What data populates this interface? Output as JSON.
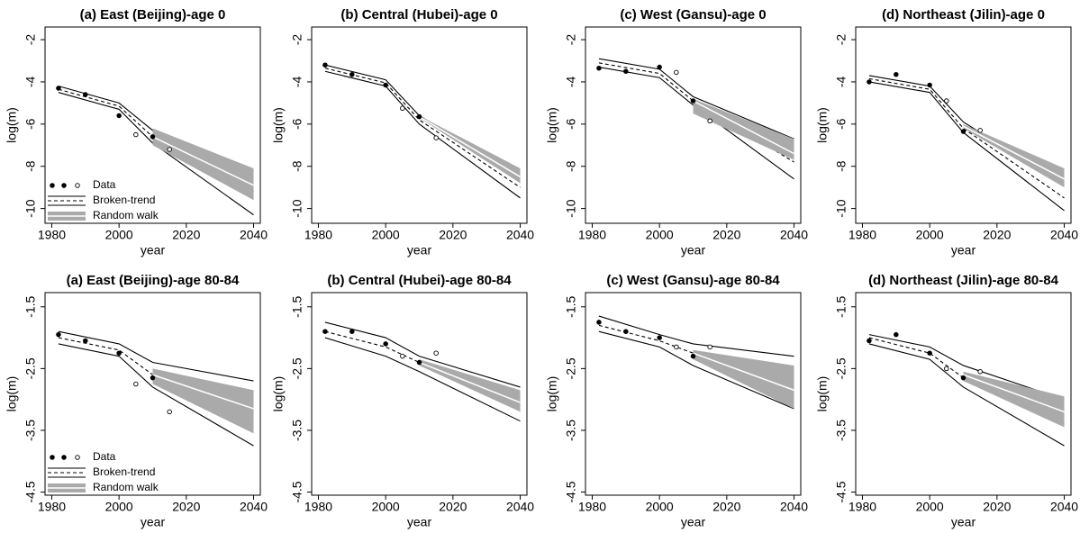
{
  "chart_data": [
    {
      "type": "line",
      "title": "(a) East (Beijing)-age 0",
      "x_label": "year",
      "y_label": "log(m)",
      "xlim": [
        1978,
        2042
      ],
      "xticks": [
        1980,
        2000,
        2020,
        2040
      ],
      "ylim": [
        -10.7,
        -1.4
      ],
      "yticks": [
        -2,
        -4,
        -6,
        -8,
        -10
      ],
      "legend": "bottom-left",
      "series": [
        {
          "name": "Data",
          "color": "#000000",
          "x": [
            1982,
            1990,
            2000,
            2005,
            2010,
            2015
          ],
          "values": [
            -4.3,
            -4.6,
            -5.6,
            -6.5,
            -6.6,
            -7.2
          ],
          "filled": [
            true,
            true,
            true,
            false,
            true,
            false
          ]
        },
        {
          "name": "Broken-trend",
          "color": "#000000",
          "x": [
            1982,
            2000,
            2010,
            2040
          ],
          "values": [
            -4.35,
            -5.15,
            -6.6,
            -9.2
          ],
          "upper": [
            -4.2,
            -5.0,
            -6.3,
            -8.2
          ],
          "lower": [
            -4.5,
            -5.3,
            -6.9,
            -10.3
          ]
        },
        {
          "name": "Random walk",
          "color": "#aaaaaa",
          "x": [
            2010,
            2040
          ],
          "values": [
            -6.6,
            -8.9
          ],
          "upper": [
            -6.2,
            -8.1
          ],
          "lower": [
            -7.0,
            -9.6
          ]
        }
      ]
    },
    {
      "type": "line",
      "title": "(b) Central (Hubei)-age 0",
      "x_label": "year",
      "y_label": "log(m)",
      "xlim": [
        1978,
        2042
      ],
      "xticks": [
        1980,
        2000,
        2020,
        2040
      ],
      "ylim": [
        -10.7,
        -1.4
      ],
      "yticks": [
        -2,
        -4,
        -6,
        -8,
        -10
      ],
      "series": [
        {
          "name": "Data",
          "color": "#000000",
          "x": [
            1982,
            1990,
            2000,
            2005,
            2010,
            2015
          ],
          "values": [
            -3.2,
            -3.65,
            -4.15,
            -5.25,
            -5.65,
            -6.65
          ],
          "filled": [
            true,
            true,
            true,
            false,
            true,
            false
          ]
        },
        {
          "name": "Broken-trend",
          "color": "#000000",
          "x": [
            1982,
            2000,
            2010,
            2040
          ],
          "values": [
            -3.35,
            -4.05,
            -5.8,
            -9.0
          ],
          "upper": [
            -3.2,
            -3.9,
            -5.6,
            -8.5
          ],
          "lower": [
            -3.5,
            -4.2,
            -6.0,
            -9.5
          ]
        },
        {
          "name": "Random walk",
          "color": "#aaaaaa",
          "x": [
            2010,
            2040
          ],
          "values": [
            -5.65,
            -8.5
          ],
          "upper": [
            -5.6,
            -8.1
          ],
          "lower": [
            -5.7,
            -8.8
          ]
        }
      ]
    },
    {
      "type": "line",
      "title": "(c) West (Gansu)-age 0",
      "x_label": "year",
      "y_label": "log(m)",
      "xlim": [
        1978,
        2042
      ],
      "xticks": [
        1980,
        2000,
        2020,
        2040
      ],
      "ylim": [
        -10.7,
        -1.4
      ],
      "yticks": [
        -2,
        -4,
        -6,
        -8,
        -10
      ],
      "series": [
        {
          "name": "Data",
          "color": "#000000",
          "x": [
            1982,
            1990,
            2000,
            2005,
            2010,
            2015
          ],
          "values": [
            -3.35,
            -3.5,
            -3.3,
            -3.55,
            -4.9,
            -5.85
          ],
          "filled": [
            true,
            true,
            true,
            false,
            true,
            false
          ]
        },
        {
          "name": "Broken-trend",
          "color": "#000000",
          "x": [
            1982,
            2000,
            2010,
            2040
          ],
          "values": [
            -3.1,
            -3.6,
            -4.9,
            -7.8
          ],
          "upper": [
            -2.9,
            -3.4,
            -4.7,
            -6.7
          ],
          "lower": [
            -3.3,
            -3.8,
            -5.1,
            -8.6
          ]
        },
        {
          "name": "Random walk",
          "color": "#aaaaaa",
          "x": [
            2010,
            2040
          ],
          "values": [
            -4.9,
            -7.4
          ],
          "upper": [
            -4.8,
            -6.7
          ],
          "lower": [
            -5.5,
            -7.7
          ]
        }
      ]
    },
    {
      "type": "line",
      "title": "(d) Northeast (Jilin)-age 0",
      "x_label": "year",
      "y_label": "log(m)",
      "xlim": [
        1978,
        2042
      ],
      "xticks": [
        1980,
        2000,
        2020,
        2040
      ],
      "ylim": [
        -10.7,
        -1.4
      ],
      "yticks": [
        -2,
        -4,
        -6,
        -8,
        -10
      ],
      "series": [
        {
          "name": "Data",
          "color": "#000000",
          "x": [
            1982,
            1990,
            2000,
            2005,
            2010,
            2015
          ],
          "values": [
            -4.0,
            -3.65,
            -4.15,
            -4.9,
            -6.35,
            -6.3
          ],
          "filled": [
            true,
            true,
            true,
            false,
            true,
            false
          ]
        },
        {
          "name": "Broken-trend",
          "color": "#000000",
          "x": [
            1982,
            2000,
            2010,
            2040
          ],
          "values": [
            -3.85,
            -4.35,
            -6.2,
            -9.5
          ],
          "upper": [
            -3.7,
            -4.2,
            -5.9,
            -8.9
          ],
          "lower": [
            -4.0,
            -4.5,
            -6.4,
            -10.1
          ]
        },
        {
          "name": "Random walk",
          "color": "#aaaaaa",
          "x": [
            2010,
            2040
          ],
          "values": [
            -6.1,
            -8.6
          ],
          "upper": [
            -6.0,
            -8.1
          ],
          "lower": [
            -6.2,
            -9.0
          ]
        }
      ]
    },
    {
      "type": "line",
      "title": "(a) East (Beijing)-age 80-84",
      "x_label": "year",
      "y_label": "log(m)",
      "xlim": [
        1978,
        2042
      ],
      "xticks": [
        1980,
        2000,
        2020,
        2040
      ],
      "ylim": [
        -4.55,
        -1.27
      ],
      "yticks": [
        -1.5,
        -2.5,
        -3.5,
        -4.5
      ],
      "legend": "bottom-left",
      "series": [
        {
          "name": "Data",
          "color": "#000000",
          "x": [
            1982,
            1990,
            2000,
            2005,
            2010,
            2015
          ],
          "values": [
            -1.95,
            -2.05,
            -2.25,
            -2.75,
            -2.65,
            -3.2
          ],
          "filled": [
            true,
            true,
            true,
            false,
            true,
            false
          ]
        },
        {
          "name": "Broken-trend",
          "color": "#000000",
          "x": [
            1982,
            2000,
            2010,
            2040
          ],
          "values": [
            -2.0,
            -2.2,
            -2.6,
            -3.2
          ],
          "upper": [
            -1.9,
            -2.1,
            -2.4,
            -2.7
          ],
          "lower": [
            -2.1,
            -2.3,
            -2.8,
            -3.75
          ]
        },
        {
          "name": "Random walk",
          "color": "#aaaaaa",
          "x": [
            2010,
            2040
          ],
          "values": [
            -2.6,
            -3.15
          ],
          "upper": [
            -2.5,
            -2.85
          ],
          "lower": [
            -2.75,
            -3.55
          ]
        }
      ]
    },
    {
      "type": "line",
      "title": "(b) Central (Hubei)-age 80-84",
      "x_label": "year",
      "y_label": "log(m)",
      "xlim": [
        1978,
        2042
      ],
      "xticks": [
        1980,
        2000,
        2020,
        2040
      ],
      "ylim": [
        -4.55,
        -1.27
      ],
      "yticks": [
        -1.5,
        -2.5,
        -3.5,
        -4.5
      ],
      "series": [
        {
          "name": "Data",
          "color": "#000000",
          "x": [
            1982,
            1990,
            2000,
            2005,
            2010,
            2015
          ],
          "values": [
            -1.9,
            -1.9,
            -2.1,
            -2.3,
            -2.4,
            -2.25
          ],
          "filled": [
            true,
            true,
            true,
            false,
            true,
            false
          ]
        },
        {
          "name": "Broken-trend",
          "color": "#000000",
          "x": [
            1982,
            2000,
            2010,
            2040
          ],
          "values": [
            -1.9,
            -2.15,
            -2.4,
            -3.05
          ],
          "upper": [
            -1.75,
            -2.0,
            -2.3,
            -2.8
          ],
          "lower": [
            -2.0,
            -2.3,
            -2.55,
            -3.35
          ]
        },
        {
          "name": "Random walk",
          "color": "#aaaaaa",
          "x": [
            2010,
            2040
          ],
          "values": [
            -2.4,
            -3.05
          ],
          "upper": [
            -2.35,
            -2.85
          ],
          "lower": [
            -2.45,
            -3.2
          ]
        }
      ]
    },
    {
      "type": "line",
      "title": "(c) West (Gansu)-age 80-84",
      "x_label": "year",
      "y_label": "log(m)",
      "xlim": [
        1978,
        2042
      ],
      "xticks": [
        1980,
        2000,
        2020,
        2040
      ],
      "ylim": [
        -4.55,
        -1.27
      ],
      "yticks": [
        -1.5,
        -2.5,
        -3.5,
        -4.5
      ],
      "series": [
        {
          "name": "Data",
          "color": "#000000",
          "x": [
            1982,
            1990,
            2000,
            2005,
            2010,
            2015
          ],
          "values": [
            -1.75,
            -1.9,
            -2.0,
            -2.15,
            -2.3,
            -2.15
          ],
          "filled": [
            true,
            true,
            true,
            false,
            true,
            false
          ]
        },
        {
          "name": "Broken-trend",
          "color": "#000000",
          "x": [
            1982,
            2000,
            2010,
            2040
          ],
          "values": [
            -1.8,
            -2.05,
            -2.25,
            -2.85
          ],
          "upper": [
            -1.65,
            -1.95,
            -2.1,
            -2.3
          ],
          "lower": [
            -1.9,
            -2.15,
            -2.45,
            -3.15
          ]
        },
        {
          "name": "Random walk",
          "color": "#aaaaaa",
          "x": [
            2010,
            2040
          ],
          "values": [
            -2.25,
            -2.85
          ],
          "upper": [
            -2.2,
            -2.45
          ],
          "lower": [
            -2.35,
            -3.15
          ]
        }
      ]
    },
    {
      "type": "line",
      "title": "(d) Northeast (Jilin)-age 80-84",
      "x_label": "year",
      "y_label": "log(m)",
      "xlim": [
        1978,
        2042
      ],
      "xticks": [
        1980,
        2000,
        2020,
        2040
      ],
      "ylim": [
        -4.55,
        -1.27
      ],
      "yticks": [
        -1.5,
        -2.5,
        -3.5,
        -4.5
      ],
      "series": [
        {
          "name": "Data",
          "color": "#000000",
          "x": [
            1982,
            1990,
            2000,
            2005,
            2010,
            2015
          ],
          "values": [
            -2.05,
            -1.95,
            -2.25,
            -2.5,
            -2.65,
            -2.55
          ],
          "filled": [
            true,
            true,
            true,
            false,
            true,
            false
          ]
        },
        {
          "name": "Broken-trend",
          "color": "#000000",
          "x": [
            1982,
            2000,
            2010,
            2040
          ],
          "values": [
            -2.0,
            -2.25,
            -2.65,
            -3.4
          ],
          "upper": [
            -1.95,
            -2.15,
            -2.45,
            -3.0
          ],
          "lower": [
            -2.1,
            -2.35,
            -2.8,
            -3.75
          ]
        },
        {
          "name": "Random walk",
          "color": "#aaaaaa",
          "x": [
            2010,
            2040
          ],
          "values": [
            -2.6,
            -3.2
          ],
          "upper": [
            -2.55,
            -2.95
          ],
          "lower": [
            -2.7,
            -3.45
          ]
        }
      ]
    }
  ]
}
